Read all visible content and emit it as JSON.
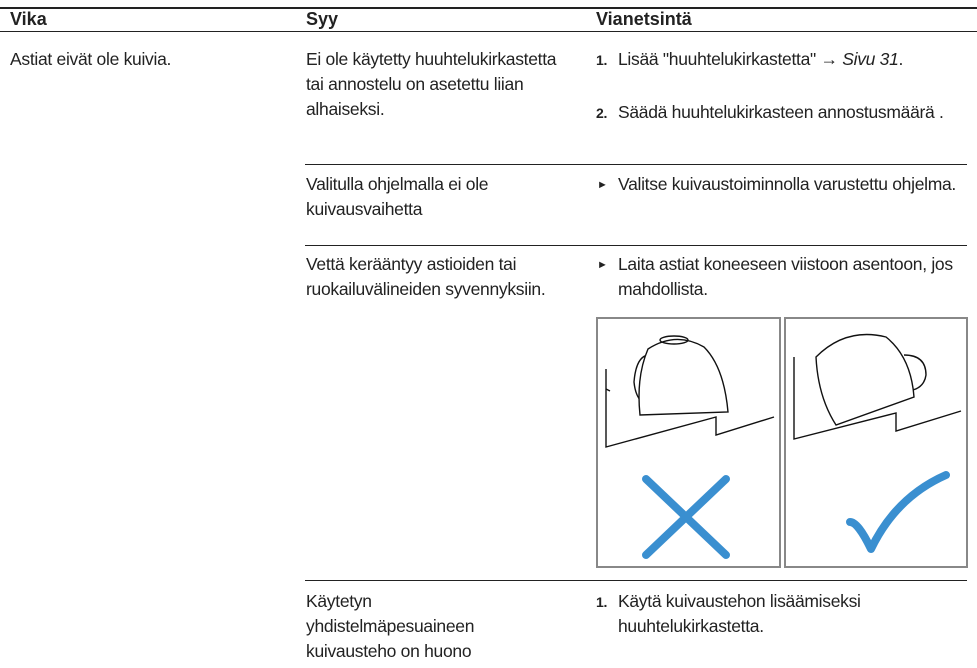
{
  "table": {
    "header": [
      "Vika",
      "Syy",
      "Vianetsintä"
    ],
    "rows": [
      {
        "fault": "Astiat eivät ole kuivia.",
        "cause": "Ei ole käytetty huuhtelukirkastetta tai annostelu on asetettu liian alhaiseksi.",
        "steps": [
          {
            "number": "1.",
            "text": "Lisää \"huuhtelukirkastetta\" →",
            "link": "Sivu 31",
            "after": "."
          },
          {
            "number": "2.",
            "text": "Säädä huuhtelukirkasteen annostusmäärä ."
          }
        ]
      },
      {
        "cause": "Valitulla ohjelmalla ei ole kuivausvaihetta",
        "steps": [
          {
            "number": "►",
            "text": "Valitse kuivaustoiminnolla varustettu ohjelma."
          }
        ]
      },
      {
        "cause": "Vettä kerääntyy astioiden tai ruokailuvälineiden syvennyksiin.",
        "steps": [
          {
            "number": "►",
            "text": "Laita astiat koneeseen viistoon asentoon, jos mahdollista."
          }
        ]
      },
      {
        "cause": "Käytetyn yhdistelmäpesuaineen kuivausteho on huono",
        "steps": [
          {
            "number": "1.",
            "text": "Käytä kuivaustehon lisäämiseksi huuhtelukirkastetta."
          }
        ]
      }
    ]
  }
}
